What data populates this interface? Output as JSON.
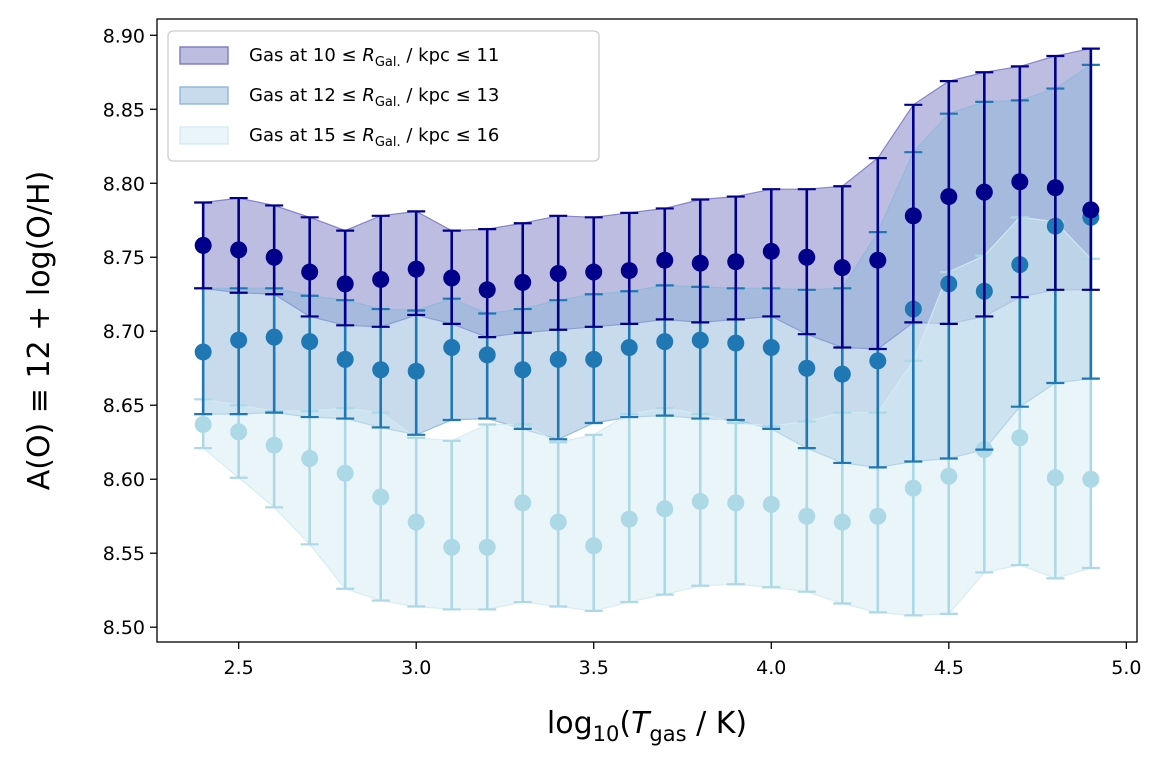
{
  "chart_data": {
    "type": "scatter",
    "xlabel": "log10(Tgas / K)",
    "ylabel": "A(O) ≡ 12 + log(O/H)",
    "xlim": [
      2.27,
      5.03
    ],
    "ylim": [
      8.49,
      8.911
    ],
    "xticks": [
      "2.5",
      "3.0",
      "3.5",
      "4.0",
      "4.5",
      "5.0"
    ],
    "yticks": [
      "8.50",
      "8.55",
      "8.60",
      "8.65",
      "8.70",
      "8.75",
      "8.80",
      "8.85",
      "8.90"
    ],
    "legend_position": "upper-left",
    "x": [
      2.4,
      2.5,
      2.6,
      2.7,
      2.8,
      2.9,
      3.0,
      3.1,
      3.2,
      3.3,
      3.4,
      3.5,
      3.6,
      3.7,
      3.8,
      3.9,
      4.0,
      4.1,
      4.2,
      4.3,
      4.4,
      4.5,
      4.6,
      4.7,
      4.8,
      4.9
    ],
    "series": [
      {
        "name": "Gas at 10 ≤ RGal. / kpc ≤ 11",
        "legend": {
          "prefix": "Gas at 10 ≤ ",
          "sym": "R",
          "sub": "Gal.",
          "suffix": " / kpc ≤ 11"
        },
        "color": "#00008b",
        "fill": "#7b7bc4",
        "fill_opacity": 0.5,
        "y": [
          8.758,
          8.755,
          8.75,
          8.74,
          8.732,
          8.735,
          8.742,
          8.736,
          8.728,
          8.733,
          8.739,
          8.74,
          8.741,
          8.748,
          8.746,
          8.747,
          8.754,
          8.75,
          8.743,
          8.748,
          8.778,
          8.791,
          8.794,
          8.801,
          8.797,
          8.782
        ],
        "low": [
          8.729,
          8.726,
          8.725,
          8.71,
          8.704,
          8.703,
          8.711,
          8.705,
          8.696,
          8.699,
          8.701,
          8.703,
          8.705,
          8.708,
          8.706,
          8.708,
          8.71,
          8.698,
          8.689,
          8.688,
          8.706,
          8.705,
          8.71,
          8.723,
          8.728,
          8.728
        ],
        "high": [
          8.787,
          8.79,
          8.785,
          8.777,
          8.768,
          8.778,
          8.781,
          8.768,
          8.769,
          8.773,
          8.778,
          8.777,
          8.78,
          8.783,
          8.789,
          8.791,
          8.796,
          8.796,
          8.798,
          8.817,
          8.853,
          8.869,
          8.875,
          8.879,
          8.886,
          8.891
        ]
      },
      {
        "name": "Gas at 12 ≤ RGal. / kpc ≤ 13",
        "legend": {
          "prefix": "Gas at 12 ≤ ",
          "sym": "R",
          "sub": "Gal.",
          "suffix": " / kpc ≤ 13"
        },
        "color": "#1f77b4",
        "fill": "#90b8dc",
        "fill_opacity": 0.5,
        "y": [
          8.686,
          8.694,
          8.696,
          8.693,
          8.681,
          8.674,
          8.673,
          8.689,
          8.684,
          8.674,
          8.681,
          8.681,
          8.689,
          8.693,
          8.694,
          8.692,
          8.689,
          8.675,
          8.671,
          8.68,
          8.715,
          8.732,
          8.727,
          8.745,
          8.771,
          8.777
        ],
        "low": [
          8.644,
          8.644,
          8.645,
          8.642,
          8.641,
          8.635,
          8.63,
          8.64,
          8.641,
          8.634,
          8.627,
          8.638,
          8.642,
          8.643,
          8.641,
          8.64,
          8.634,
          8.621,
          8.611,
          8.608,
          8.612,
          8.614,
          8.62,
          8.649,
          8.665,
          8.668
        ],
        "high": [
          8.729,
          8.729,
          8.729,
          8.724,
          8.721,
          8.715,
          8.714,
          8.722,
          8.712,
          8.715,
          8.721,
          8.725,
          8.727,
          8.731,
          8.73,
          8.729,
          8.729,
          8.728,
          8.729,
          8.767,
          8.821,
          8.847,
          8.855,
          8.856,
          8.864,
          8.88
        ]
      },
      {
        "name": "Gas at 15 ≤ RGal. / kpc ≤ 16",
        "legend": {
          "prefix": "Gas at 15 ≤ ",
          "sym": "R",
          "sub": "Gal.",
          "suffix": " / kpc ≤ 16"
        },
        "color": "#add8e6",
        "fill": "#d4ebf1",
        "fill_opacity": 0.5,
        "y": [
          8.637,
          8.632,
          8.623,
          8.614,
          8.604,
          8.588,
          8.571,
          8.554,
          8.554,
          8.584,
          8.571,
          8.555,
          8.573,
          8.58,
          8.585,
          8.584,
          8.583,
          8.575,
          8.571,
          8.575,
          8.594,
          8.602,
          8.62,
          8.628,
          8.601,
          8.6
        ],
        "low": [
          8.621,
          8.601,
          8.581,
          8.556,
          8.526,
          8.518,
          8.514,
          8.512,
          8.512,
          8.517,
          8.514,
          8.511,
          8.517,
          8.522,
          8.528,
          8.529,
          8.527,
          8.524,
          8.516,
          8.51,
          8.508,
          8.509,
          8.537,
          8.542,
          8.533,
          8.54
        ],
        "high": [
          8.654,
          8.65,
          8.646,
          8.646,
          8.648,
          8.645,
          8.628,
          8.626,
          8.637,
          8.637,
          8.625,
          8.63,
          8.644,
          8.648,
          8.644,
          8.638,
          8.636,
          8.639,
          8.645,
          8.645,
          8.68,
          8.74,
          8.751,
          8.777,
          8.774,
          8.749
        ]
      }
    ]
  }
}
